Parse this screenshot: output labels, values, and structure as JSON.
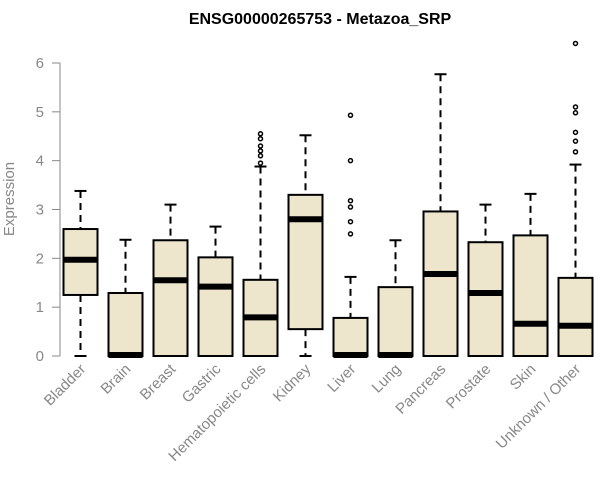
{
  "chart_data": {
    "type": "boxplot",
    "title": "ENSG00000265753 - Metazoa_SRP",
    "xlabel": "",
    "ylabel": "Expression",
    "ylim": [
      0,
      6
    ],
    "yticks": [
      0,
      1,
      2,
      3,
      4,
      5,
      6
    ],
    "box_fill": "#ede6cc",
    "categories": [
      "Bladder",
      "Brain",
      "Breast",
      "Gastric",
      "Hematopoietic cells",
      "Kidney",
      "Liver",
      "Lung",
      "Pancreas",
      "Prostate",
      "Skin",
      "Unknown / Other"
    ],
    "series": [
      {
        "name": "Bladder",
        "min": 0,
        "q1": 1.25,
        "median": 1.97,
        "q3": 2.6,
        "max": 3.38,
        "outliers": []
      },
      {
        "name": "Brain",
        "min": 0,
        "q1": 0,
        "median": 0.02,
        "q3": 1.29,
        "max": 2.38,
        "outliers": []
      },
      {
        "name": "Breast",
        "min": 0,
        "q1": 0,
        "median": 1.55,
        "q3": 2.37,
        "max": 3.1,
        "outliers": []
      },
      {
        "name": "Gastric",
        "min": 0,
        "q1": 0,
        "median": 1.42,
        "q3": 2.02,
        "max": 2.65,
        "outliers": []
      },
      {
        "name": "Hematopoietic cells",
        "min": 0,
        "q1": 0,
        "median": 0.79,
        "q3": 1.56,
        "max": 3.88,
        "outliers": [
          3.95,
          4.1,
          4.2,
          4.3,
          4.45,
          4.55
        ]
      },
      {
        "name": "Kidney",
        "min": 0,
        "q1": 0.55,
        "median": 2.8,
        "q3": 3.3,
        "max": 4.52,
        "outliers": []
      },
      {
        "name": "Liver",
        "min": 0,
        "q1": 0,
        "median": 0.02,
        "q3": 0.78,
        "max": 1.62,
        "outliers": [
          2.5,
          2.75,
          3.05,
          3.18,
          4.0,
          4.93
        ]
      },
      {
        "name": "Lung",
        "min": 0,
        "q1": 0,
        "median": 0.02,
        "q3": 1.41,
        "max": 2.37,
        "outliers": []
      },
      {
        "name": "Pancreas",
        "min": 0,
        "q1": 0,
        "median": 1.68,
        "q3": 2.96,
        "max": 5.77,
        "outliers": []
      },
      {
        "name": "Prostate",
        "min": 0,
        "q1": 0,
        "median": 1.29,
        "q3": 2.33,
        "max": 3.1,
        "outliers": []
      },
      {
        "name": "Skin",
        "min": 0,
        "q1": 0,
        "median": 0.66,
        "q3": 2.47,
        "max": 3.32,
        "outliers": []
      },
      {
        "name": "Unknown / Other",
        "min": 0,
        "q1": 0,
        "median": 0.62,
        "q3": 1.6,
        "max": 3.92,
        "outliers": [
          4.18,
          4.4,
          4.58,
          4.98,
          5.1,
          6.4
        ]
      }
    ]
  }
}
